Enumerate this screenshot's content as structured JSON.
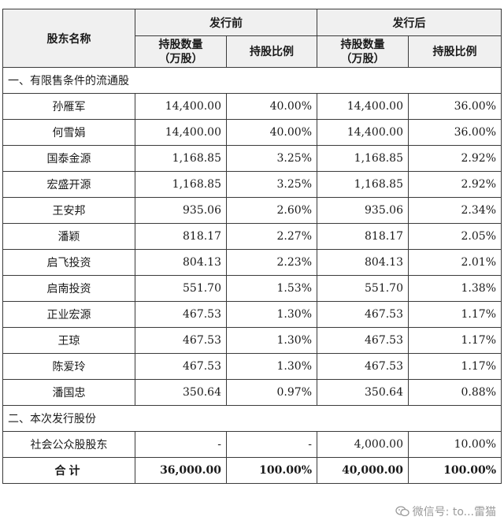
{
  "header": {
    "holder_name": "股东名称",
    "before_issue": "发行前",
    "after_issue": "发行后",
    "shares_qty_line1": "持股数量",
    "shares_qty_line2": "（万股）",
    "share_ratio": "持股比例"
  },
  "sections": [
    {
      "title": "一、有限售条件的流通股",
      "rows": [
        {
          "name": "孙雁军",
          "before_qty": "14,400.00",
          "before_ratio": "40.00%",
          "after_qty": "14,400.00",
          "after_ratio": "36.00%"
        },
        {
          "name": "何雪娟",
          "before_qty": "14,400.00",
          "before_ratio": "40.00%",
          "after_qty": "14,400.00",
          "after_ratio": "36.00%"
        },
        {
          "name": "国泰金源",
          "before_qty": "1,168.85",
          "before_ratio": "3.25%",
          "after_qty": "1,168.85",
          "after_ratio": "2.92%"
        },
        {
          "name": "宏盛开源",
          "before_qty": "1,168.85",
          "before_ratio": "3.25%",
          "after_qty": "1,168.85",
          "after_ratio": "2.92%"
        },
        {
          "name": "王安邦",
          "before_qty": "935.06",
          "before_ratio": "2.60%",
          "after_qty": "935.06",
          "after_ratio": "2.34%"
        },
        {
          "name": "潘颖",
          "before_qty": "818.17",
          "before_ratio": "2.27%",
          "after_qty": "818.17",
          "after_ratio": "2.05%"
        },
        {
          "name": "启飞投资",
          "before_qty": "804.13",
          "before_ratio": "2.23%",
          "after_qty": "804.13",
          "after_ratio": "2.01%"
        },
        {
          "name": "启南投资",
          "before_qty": "551.70",
          "before_ratio": "1.53%",
          "after_qty": "551.70",
          "after_ratio": "1.38%"
        },
        {
          "name": "正业宏源",
          "before_qty": "467.53",
          "before_ratio": "1.30%",
          "after_qty": "467.53",
          "after_ratio": "1.17%"
        },
        {
          "name": "王琼",
          "before_qty": "467.53",
          "before_ratio": "1.30%",
          "after_qty": "467.53",
          "after_ratio": "1.17%"
        },
        {
          "name": "陈爱玲",
          "before_qty": "467.53",
          "before_ratio": "1.30%",
          "after_qty": "467.53",
          "after_ratio": "1.17%"
        },
        {
          "name": "潘国忠",
          "before_qty": "350.64",
          "before_ratio": "0.97%",
          "after_qty": "350.64",
          "after_ratio": "0.88%"
        }
      ]
    },
    {
      "title": "二、本次发行股份",
      "rows": [
        {
          "name": "社会公众股股东",
          "before_qty": "-",
          "before_ratio": "-",
          "after_qty": "4,000.00",
          "after_ratio": "10.00%"
        }
      ]
    }
  ],
  "total": {
    "name": "合计",
    "before_qty": "36,000.00",
    "before_ratio": "100.00%",
    "after_qty": "40,000.00",
    "after_ratio": "100.00%"
  },
  "watermark": {
    "text": "微信号: to...雷猫",
    "icon": "wechat-icon"
  }
}
